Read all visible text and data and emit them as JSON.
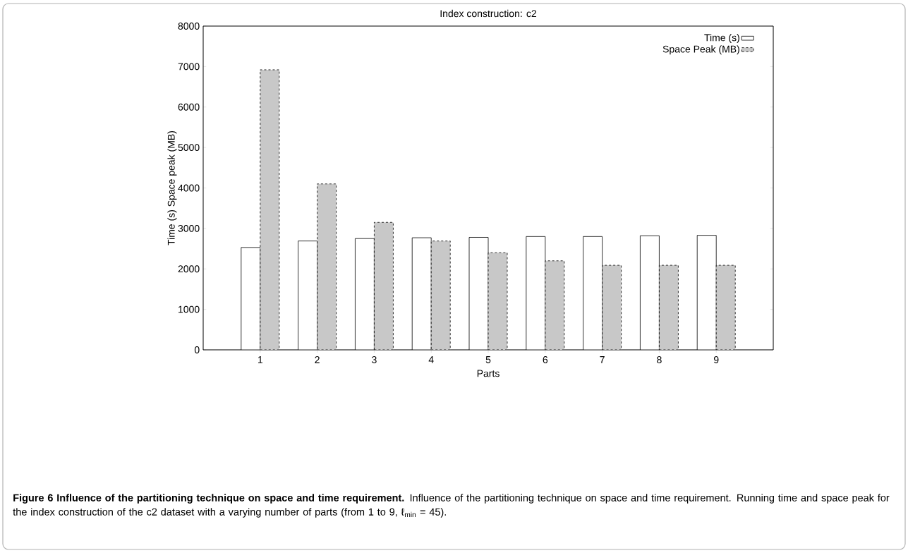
{
  "chart_data": {
    "type": "bar",
    "title": "Index construction: c2",
    "xlabel": "Parts",
    "ylabel": "Time (s)  Space peak (MB)",
    "categories": [
      "1",
      "2",
      "3",
      "4",
      "5",
      "6",
      "7",
      "8",
      "9"
    ],
    "series": [
      {
        "name": "Time (s)",
        "color": "#ffffff",
        "line_style": "solid",
        "values": [
          2530,
          2690,
          2750,
          2770,
          2780,
          2800,
          2800,
          2820,
          2830
        ]
      },
      {
        "name": "Space Peak (MB)",
        "color": "#c8c8c8",
        "line_style": "dashed",
        "values": [
          6920,
          4100,
          3150,
          2690,
          2400,
          2200,
          2090,
          2090,
          2090
        ]
      }
    ],
    "ylim": [
      0,
      8000
    ],
    "yticks": [
      0,
      1000,
      2000,
      3000,
      4000,
      5000,
      6000,
      7000,
      8000
    ],
    "legend": "top right",
    "grid": false,
    "annotations": [
      "**Figure 6 Influence of the partitioning technique on space and time requirement.** Influence of the partitioning technique on space and time requirement. Running time and space peak for the index construction of the c2 dataset with a varying number of parts (from 1 to 9, ℓ$_{min}$ = 45)."
    ]
  }
}
